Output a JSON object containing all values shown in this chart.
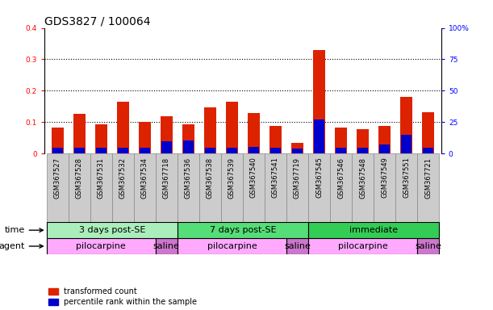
{
  "title": "GDS3827 / 100064",
  "samples": [
    "GSM367527",
    "GSM367528",
    "GSM367531",
    "GSM367532",
    "GSM367534",
    "GSM367718",
    "GSM367536",
    "GSM367538",
    "GSM367539",
    "GSM367540",
    "GSM367541",
    "GSM367719",
    "GSM367545",
    "GSM367546",
    "GSM367548",
    "GSM367549",
    "GSM367551",
    "GSM367721"
  ],
  "red_values": [
    0.082,
    0.127,
    0.093,
    0.165,
    0.1,
    0.12,
    0.093,
    0.148,
    0.165,
    0.13,
    0.088,
    0.033,
    0.33,
    0.083,
    0.078,
    0.088,
    0.18,
    0.132
  ],
  "blue_values": [
    0.018,
    0.018,
    0.02,
    0.018,
    0.02,
    0.04,
    0.042,
    0.02,
    0.018,
    0.022,
    0.018,
    0.015,
    0.108,
    0.02,
    0.018,
    0.03,
    0.06,
    0.018
  ],
  "time_groups": [
    {
      "label": "3 days post-SE",
      "start": 0,
      "end": 5,
      "color": "#aaeebb"
    },
    {
      "label": "7 days post-SE",
      "start": 6,
      "end": 11,
      "color": "#55dd77"
    },
    {
      "label": "immediate",
      "start": 12,
      "end": 17,
      "color": "#33cc55"
    }
  ],
  "agent_groups": [
    {
      "label": "pilocarpine",
      "start": 0,
      "end": 4,
      "color": "#ffaaff"
    },
    {
      "label": "saline",
      "start": 5,
      "end": 5,
      "color": "#cc77cc"
    },
    {
      "label": "pilocarpine",
      "start": 6,
      "end": 10,
      "color": "#ffaaff"
    },
    {
      "label": "saline",
      "start": 11,
      "end": 11,
      "color": "#cc77cc"
    },
    {
      "label": "pilocarpine",
      "start": 12,
      "end": 16,
      "color": "#ffaaff"
    },
    {
      "label": "saline",
      "start": 17,
      "end": 17,
      "color": "#cc77cc"
    }
  ],
  "ylim_left": [
    0,
    0.4
  ],
  "ylim_right": [
    0,
    100
  ],
  "yticks_left": [
    0,
    0.1,
    0.2,
    0.3,
    0.4
  ],
  "yticks_right": [
    0,
    25,
    50,
    75,
    100
  ],
  "bar_width": 0.55,
  "red_color": "#dd2200",
  "blue_color": "#0000cc",
  "bg_color": "#ffffff",
  "tick_fontsize": 6.5,
  "sample_label_fontsize": 6,
  "row_label_fontsize": 8,
  "group_label_fontsize": 8,
  "title_fontsize": 10,
  "legend_fontsize": 7
}
